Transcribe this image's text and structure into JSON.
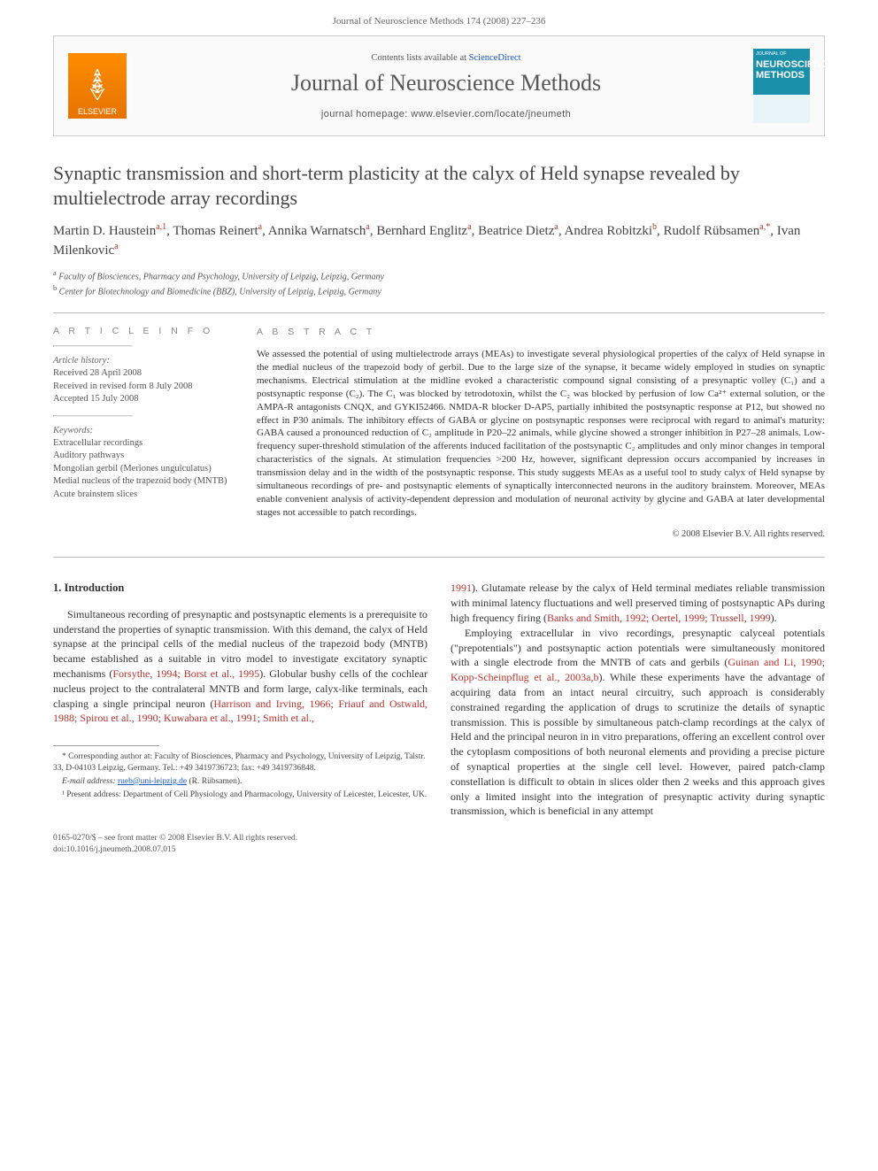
{
  "header": {
    "running_head": "Journal of Neuroscience Methods 174 (2008) 227–236"
  },
  "banner": {
    "publisher_logo_text": "ELSEVIER",
    "contents_prefix": "Contents lists available at ",
    "contents_link": "ScienceDirect",
    "journal_name": "Journal of Neuroscience Methods",
    "homepage_label": "journal homepage: www.elsevier.com/locate/jneumeth",
    "cover_top": "JOURNAL OF",
    "cover_big1": "NEUROSCIENCE",
    "cover_big2": "METHODS"
  },
  "title": "Synaptic transmission and short-term plasticity at the calyx of Held synapse revealed by multielectrode array recordings",
  "authors_html": "Martin D. Haustein<sup>a,1</sup>, Thomas Reinert<sup>a</sup>, Annika Warnatsch<sup>a</sup>, Bernhard Englitz<sup>a</sup>, Beatrice Dietz<sup>a</sup>, Andrea Robitzki<sup>b</sup>, Rudolf Rübsamen<sup>a,*</sup>, Ivan Milenkovic<sup>a</sup>",
  "affiliations": {
    "a": "Faculty of Biosciences, Pharmacy and Psychology, University of Leipzig, Leipzig, Germany",
    "b": "Center for Biotechnology and Biomedicine (BBZ), University of Leipzig, Leipzig, Germany"
  },
  "article_info": {
    "heading": "A R T I C L E   I N F O",
    "history_head": "Article history:",
    "received": "Received 28 April 2008",
    "revised": "Received in revised form 8 July 2008",
    "accepted": "Accepted 15 July 2008",
    "keywords_head": "Keywords:",
    "keywords": [
      "Extracellular recordings",
      "Auditory pathways",
      "Mongolian gerbil (Meriones unguiculatus)",
      "Medial nucleus of the trapezoid body (MNTB)",
      "Acute brainstem slices"
    ]
  },
  "abstract": {
    "heading": "A B S T R A C T",
    "text": "We assessed the potential of using multielectrode arrays (MEAs) to investigate several physiological properties of the calyx of Held synapse in the medial nucleus of the trapezoid body of gerbil. Due to the large size of the synapse, it became widely employed in studies on synaptic mechanisms. Electrical stimulation at the midline evoked a characteristic compound signal consisting of a presynaptic volley (C₁) and a postsynaptic response (C₂). The C₁ was blocked by tetrodotoxin, whilst the C₂ was blocked by perfusion of low Ca²⁺ external solution, or the AMPA-R antagonists CNQX, and GYKI52466. NMDA-R blocker D-AP5, partially inhibited the postsynaptic response at P12, but showed no effect in P30 animals. The inhibitory effects of GABA or glycine on postsynaptic responses were reciprocal with regard to animal's maturity: GABA caused a pronounced reduction of C₂ amplitude in P20–22 animals, while glycine showed a stronger inhibition in P27–28 animals. Low-frequency super-threshold stimulation of the afferents induced facilitation of the postsynaptic C₂ amplitudes and only minor changes in temporal characteristics of the signals. At stimulation frequencies >200 Hz, however, significant depression occurs accompanied by increases in transmission delay and in the width of the postsynaptic response. This study suggests MEAs as a useful tool to study calyx of Held synapse by simultaneous recordings of pre- and postsynaptic elements of synaptically interconnected neurons in the auditory brainstem. Moreover, MEAs enable convenient analysis of activity-dependent depression and modulation of neuronal activity by glycine and GABA at later developmental stages not accessible to patch recordings.",
    "copyright": "© 2008 Elsevier B.V. All rights reserved."
  },
  "body": {
    "section_num": "1.",
    "section_title": "Introduction",
    "left_p1_a": "Simultaneous recording of presynaptic and postsynaptic elements is a prerequisite to understand the properties of synaptic transmission. With this demand, the calyx of Held synapse at the principal cells of the medial nucleus of the trapezoid body (MNTB) became established as a suitable in vitro model to investigate excitatory synaptic mechanisms (",
    "left_p1_ref1": "Forsythe, 1994; Borst et al., 1995",
    "left_p1_b": "). Globular bushy cells of the cochlear nucleus project to the contralateral MNTB and form large, calyx-like terminals, each clasping a single principal neuron (",
    "left_p1_ref2": "Harrison and Irving, 1966; Friauf and Ostwald, 1988; Spirou et al., 1990; Kuwabara et al., 1991; Smith et al.,",
    "right_p1_ref_cont": "1991",
    "right_p1_a": "). Glutamate release by the calyx of Held terminal mediates reliable transmission with minimal latency fluctuations and well preserved timing of postsynaptic APs during high frequency firing (",
    "right_p1_ref": "Banks and Smith, 1992; Oertel, 1999; Trussell, 1999",
    "right_p1_b": ").",
    "right_p2_a": "Employing extracellular in vivo recordings, presynaptic calyceal potentials (\"prepotentials\") and postsynaptic action potentials were simultaneously monitored with a single electrode from the MNTB of cats and gerbils (",
    "right_p2_ref": "Guinan and Li, 1990; Kopp-Scheinpflug et al., 2003a,b",
    "right_p2_b": "). While these experiments have the advantage of acquiring data from an intact neural circuitry, such approach is considerably constrained regarding the application of drugs to scrutinize the details of synaptic transmission. This is possible by simultaneous patch-clamp recordings at the calyx of Held and the principal neuron in in vitro preparations, offering an excellent control over the cytoplasm compositions of both neuronal elements and providing a precise picture of synaptical properties at the single cell level. However, paired patch-clamp constellation is difficult to obtain in slices older then 2 weeks and this approach gives only a limited insight into the integration of presynaptic activity during synaptic transmission, which is beneficial in any attempt"
  },
  "footnotes": {
    "corresponding": "* Corresponding author at: Faculty of Biosciences, Pharmacy and Psychology, University of Leipzig, Talstr. 33, D-04103 Leipzig, Germany. Tel.: +49 3419736723; fax: +49 3419736848.",
    "email_label": "E-mail address: ",
    "email": "rueb@uni-leipzig.de",
    "email_note": " (R. Rübsamen).",
    "note1": "¹ Present address: Department of Cell Physiology and Pharmacology, University of Leicester, Leicester, UK."
  },
  "footer": {
    "line1": "0165-0270/$ – see front matter © 2008 Elsevier B.V. All rights reserved.",
    "line2": "doi:10.1016/j.jneumeth.2008.07.015"
  },
  "colors": {
    "link_blue": "#1a57c4",
    "ref_red": "#b7322c",
    "elsevier_orange": "#ff8c00",
    "cover_teal": "#1a8faa"
  }
}
